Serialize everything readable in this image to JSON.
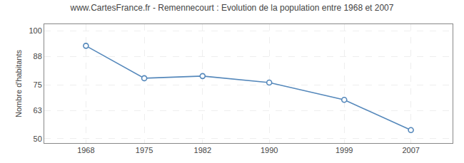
{
  "chart_data": {
    "type": "line",
    "title": "www.CartesFrance.fr - Remennecourt : Evolution de la population entre 1968 et 2007",
    "ylabel": "Nombre d'habitants",
    "x": [
      1968,
      1975,
      1982,
      1990,
      1999,
      2007
    ],
    "values": [
      93,
      78,
      79,
      76,
      68,
      54
    ],
    "xlim": [
      1963,
      2012
    ],
    "xticks": [
      1968,
      1975,
      1982,
      1990,
      1999,
      2007
    ],
    "ylim": [
      48,
      103
    ],
    "yticks": [
      50,
      63,
      75,
      88,
      100
    ],
    "grid": true,
    "color": "#5588bb",
    "marker": "circle"
  }
}
